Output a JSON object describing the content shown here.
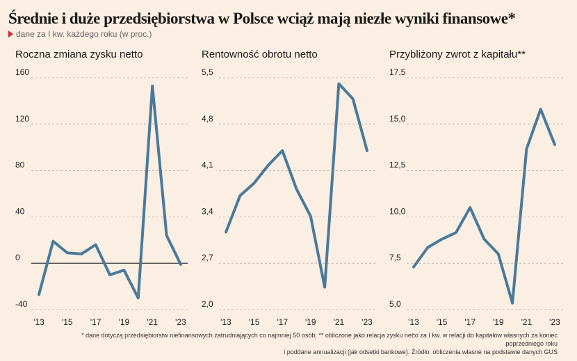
{
  "title": "Średnie i duże przedsiębiorstwa w Polsce wciąż mają niezłe wyniki finansowe*",
  "subtitle": "dane za I kw. każdego roku (w proc.)",
  "footnote_line1": "* dane dotyczą przedsiębiorstw niefinansowych zatrudniających co najmniej 50 osób; ** obliczone jako relacja zysku netto za I kw. w relacji do kapitałów własnych za koniec poprzedniego roku",
  "footnote_line2": "i poddane annualizacji (jak odsetki bankowe). Źródło: obliczenia własne na podstawie danych GUS",
  "colors": {
    "line": "#4a7a9b",
    "background": "#fbeee2",
    "marker": "#d8262c"
  },
  "chart_data": [
    {
      "type": "line",
      "title": "Roczna zmiana zysku netto",
      "x": [
        2013,
        2014,
        2015,
        2016,
        2017,
        2018,
        2019,
        2020,
        2021,
        2022,
        2023
      ],
      "x_tick_labels": [
        "'13",
        "'15",
        "'17",
        "'19",
        "'21",
        "'23"
      ],
      "values": [
        -27,
        19,
        9,
        8,
        16,
        -10,
        -6,
        -30,
        153,
        24,
        -1
      ],
      "ylim": [
        -40,
        160
      ],
      "y_ticks": [
        -40,
        0,
        40,
        80,
        120,
        160
      ],
      "y_tick_labels": [
        "-40",
        "0",
        "40",
        "80",
        "120",
        "160"
      ],
      "grid": true,
      "zero_line": true
    },
    {
      "type": "line",
      "title": "Rentowność obrotu netto",
      "x": [
        2013,
        2014,
        2015,
        2016,
        2017,
        2018,
        2019,
        2020,
        2021,
        2022,
        2023
      ],
      "x_tick_labels": [
        "'13",
        "'15",
        "'17",
        "'19",
        "'21",
        "'23"
      ],
      "values": [
        3.17,
        3.72,
        3.91,
        4.18,
        4.4,
        3.82,
        3.41,
        2.34,
        5.41,
        5.18,
        4.4
      ],
      "ylim": [
        2.0,
        5.5
      ],
      "y_ticks": [
        2.0,
        2.7,
        3.4,
        4.1,
        4.8,
        5.5
      ],
      "y_tick_labels": [
        "2,0",
        "2,7",
        "3,4",
        "4,1",
        "4,8",
        "5,5"
      ],
      "grid": true,
      "zero_line": false
    },
    {
      "type": "line",
      "title": "Przybliżony zwrot z kapitału**",
      "x": [
        2013,
        2014,
        2015,
        2016,
        2017,
        2018,
        2019,
        2020,
        2021,
        2022,
        2023
      ],
      "x_tick_labels": [
        "'13",
        "'15",
        "'17",
        "'19",
        "'21",
        "'23"
      ],
      "values": [
        7.3,
        8.35,
        8.8,
        9.15,
        10.5,
        8.8,
        8.0,
        5.35,
        13.66,
        15.8,
        13.9
      ],
      "ylim": [
        5.0,
        17.5
      ],
      "y_ticks": [
        5.0,
        7.5,
        10.0,
        12.5,
        15.0,
        17.5
      ],
      "y_tick_labels": [
        "5,0",
        "7,5",
        "10,0",
        "12,5",
        "15,0",
        "17,5"
      ],
      "grid": true,
      "zero_line": false
    }
  ]
}
